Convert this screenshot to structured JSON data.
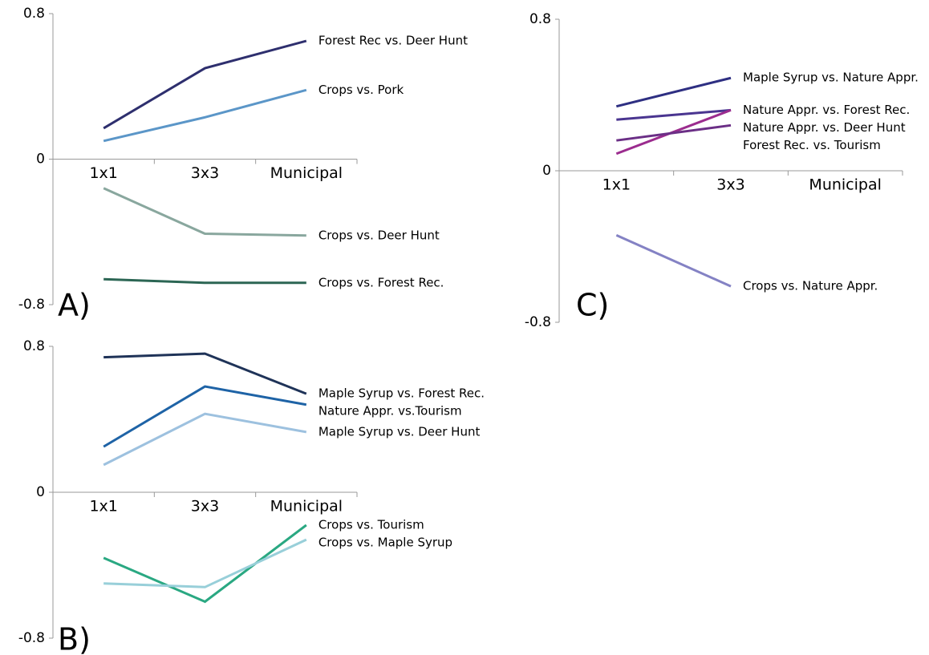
{
  "chart_data": [
    {
      "type": "line",
      "panel_label": "A)",
      "categories": [
        "1x1",
        "3x3",
        "Municipal"
      ],
      "ylim": [
        -0.8,
        0.8
      ],
      "yticks": [
        -0.8,
        0,
        0.8
      ],
      "series": [
        {
          "name": "Forest Rec vs. Deer Hunt",
          "color": "#2e2f6e",
          "values": [
            0.17,
            0.5,
            0.65
          ]
        },
        {
          "name": "Crops vs. Pork",
          "color": "#5b96c8",
          "values": [
            0.1,
            0.23,
            0.38
          ]
        },
        {
          "name": "Crops vs. Deer Hunt",
          "color": "#89a79e",
          "values": [
            -0.16,
            -0.41,
            -0.42
          ]
        },
        {
          "name": "Crops vs. Forest Rec.",
          "color": "#2c6654",
          "values": [
            -0.66,
            -0.68,
            -0.68
          ]
        }
      ]
    },
    {
      "type": "line",
      "panel_label": "B)",
      "categories": [
        "1x1",
        "3x3",
        "Municipal"
      ],
      "ylim": [
        -0.8,
        0.8
      ],
      "yticks": [
        -0.8,
        0,
        0.8
      ],
      "series": [
        {
          "name": "Maple Syrup vs. Forest Rec.",
          "color": "#1f3358",
          "values": [
            0.74,
            0.76,
            0.54
          ]
        },
        {
          "name": "Nature Appr. vs.Tourism",
          "color": "#1e63a6",
          "values": [
            0.25,
            0.58,
            0.48
          ]
        },
        {
          "name": "Maple Syrup vs. Deer Hunt",
          "color": "#9dc1df",
          "values": [
            0.15,
            0.43,
            0.33
          ]
        },
        {
          "name": "Crops vs. Tourism",
          "color": "#2aa882",
          "values": [
            -0.36,
            -0.6,
            -0.18
          ]
        },
        {
          "name": "Crops vs. Maple Syrup",
          "color": "#98cfd9",
          "values": [
            -0.5,
            -0.52,
            -0.26
          ]
        }
      ]
    },
    {
      "type": "line",
      "panel_label": "C)",
      "categories": [
        "1x1",
        "3x3",
        "Municipal"
      ],
      "ylim": [
        -0.8,
        0.8
      ],
      "yticks": [
        -0.8,
        0,
        0.8
      ],
      "series": [
        {
          "name": "Maple Syrup vs. Nature Appr.",
          "color": "#2e2f82",
          "values": [
            0.34,
            0.49,
            null
          ]
        },
        {
          "name": "Nature Appr. vs. Forest Rec.",
          "color": "#4a3590",
          "values": [
            0.27,
            0.32,
            null
          ]
        },
        {
          "name": "Nature Appr. vs. Deer Hunt",
          "color": "#9b2c8e",
          "values": [
            0.09,
            0.32,
            null
          ]
        },
        {
          "name": "Forest Rec. vs. Tourism",
          "color": "#6b2f86",
          "values": [
            0.16,
            0.24,
            null
          ]
        },
        {
          "name": "Crops vs. Nature Appr.",
          "color": "#8482c4",
          "values": [
            -0.34,
            -0.61,
            null
          ]
        }
      ]
    }
  ]
}
